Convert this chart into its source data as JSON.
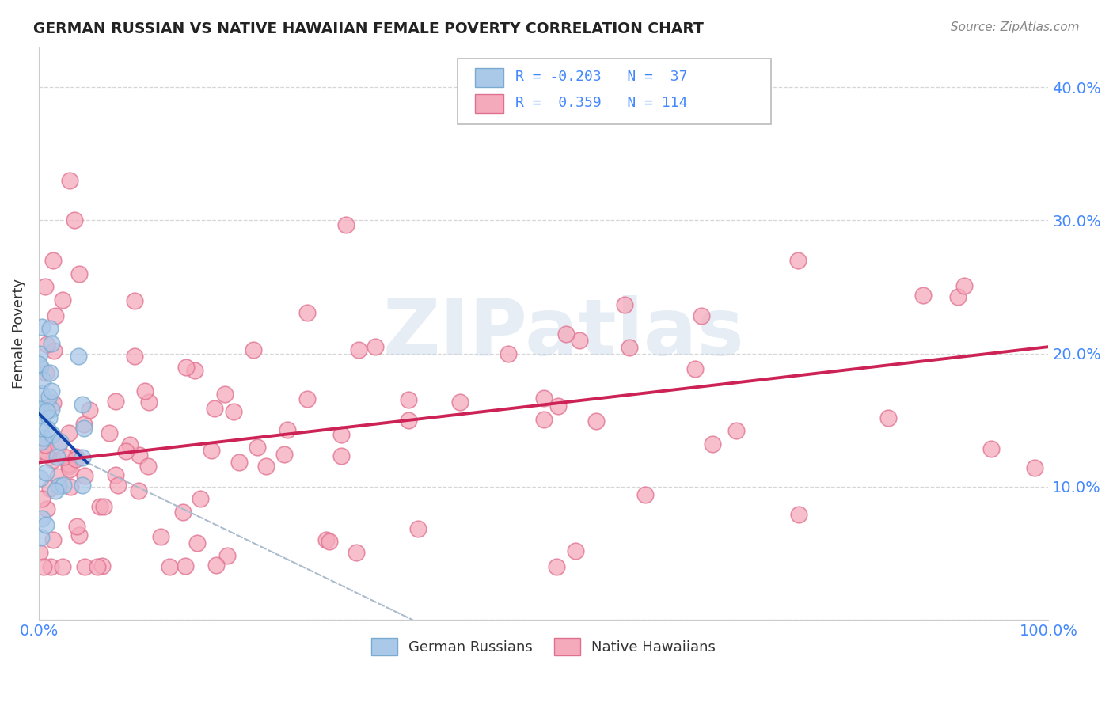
{
  "title": "GERMAN RUSSIAN VS NATIVE HAWAIIAN FEMALE POVERTY CORRELATION CHART",
  "source": "Source: ZipAtlas.com",
  "ylabel": "Female Poverty",
  "xlim": [
    0.0,
    1.0
  ],
  "ylim": [
    0.0,
    0.43
  ],
  "background_color": "#ffffff",
  "grid_color": "#cccccc",
  "blue_color": "#aac8e8",
  "pink_color": "#f5aabb",
  "blue_edge": "#7aaad0",
  "pink_edge": "#e07090",
  "trend_blue": "#1144aa",
  "trend_pink": "#cc2255",
  "trend_gray": "#aabbcc",
  "legend_R1": "-0.203",
  "legend_N1": "37",
  "legend_R2": "0.359",
  "legend_N2": "114",
  "legend_label1": "German Russians",
  "legend_label2": "Native Hawaiians",
  "watermark": "ZIPatlas",
  "title_color": "#222222",
  "source_color": "#888888",
  "axis_label_color": "#333333",
  "tick_color": "#4488ff",
  "blue_trend_x_start": 0.0,
  "blue_trend_x_end": 0.048,
  "blue_trend_y_start": 0.155,
  "blue_trend_y_end": 0.118,
  "gray_trend_x_start": 0.048,
  "gray_trend_x_end": 0.37,
  "gray_trend_y_start": 0.118,
  "gray_trend_y_end": 0.0,
  "pink_trend_x_start": 0.0,
  "pink_trend_x_end": 1.0,
  "pink_trend_y_start": 0.118,
  "pink_trend_y_end": 0.205
}
